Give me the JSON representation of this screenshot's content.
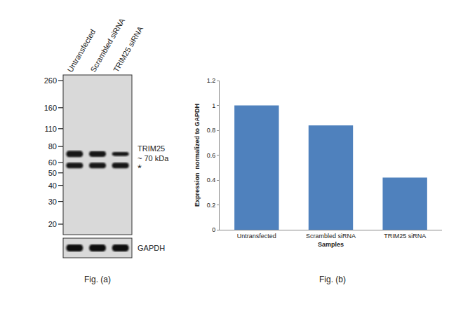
{
  "blot": {
    "lanes": [
      "Untransfected",
      "Scrambled siRNA",
      "TRIM25 siRNA"
    ],
    "markers": [
      260,
      160,
      110,
      80,
      60,
      50,
      40,
      30,
      20
    ],
    "bands": [
      {
        "kDa": 70,
        "label": "TRIM25",
        "sublabel": "~ 70 kDa"
      },
      {
        "kDa": 57,
        "label": "*"
      }
    ],
    "loading_control": "GAPDH",
    "caption": "Fig. (a)"
  },
  "chart_data": {
    "type": "bar",
    "categories": [
      "Untransfected",
      "Scrambled siRNA",
      "TRIM25 siRNA"
    ],
    "values": [
      1,
      0.84,
      0.42
    ],
    "color": "#4f81bd",
    "xlabel": "Samples",
    "ylabel": "Expression  normalized to GAPDH",
    "ylim": [
      0,
      1.2
    ],
    "yticks": [
      0,
      0.2,
      0.4,
      0.6,
      0.8,
      1,
      1.2
    ],
    "grid": false,
    "caption": "Fig. (b)"
  }
}
